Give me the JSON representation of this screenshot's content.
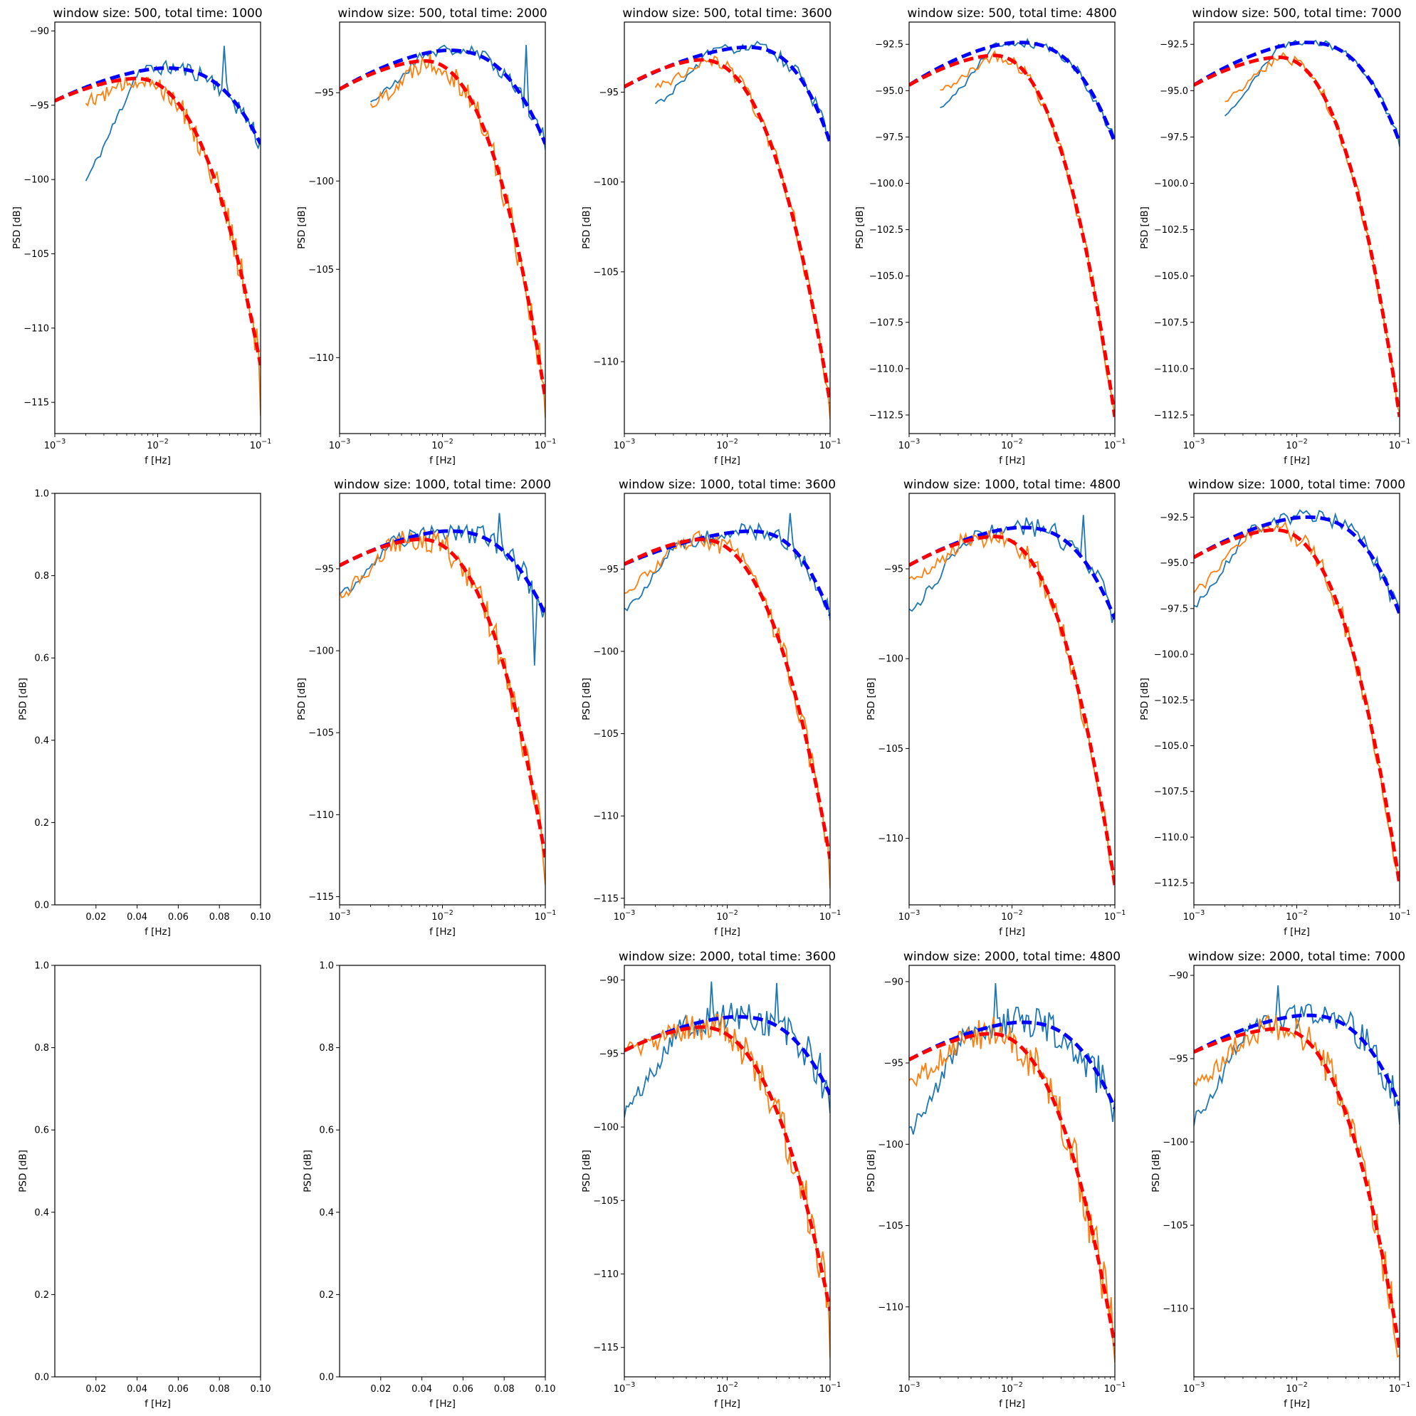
{
  "colors": {
    "blue_fit": "#0000ff",
    "red_fit": "#ff0000",
    "blue_data": "#1f77b4",
    "orange_data": "#ff7f0e",
    "frame": "#000000"
  },
  "figure": {
    "rows": 3,
    "cols": 5,
    "grid": false
  },
  "chart_data": [
    {
      "row": 0,
      "col": 0,
      "type": "line",
      "title": "window size: 500, total time: 1000",
      "xlabel": "f [Hz]",
      "ylabel": "PSD [dB]",
      "xscale": "log",
      "xlim": [
        0.001,
        0.1
      ],
      "ylim": [
        -117.1,
        -89.4
      ],
      "xticks": [
        0.001,
        0.01,
        0.1
      ],
      "xticklabels": [
        "10",
        "10",
        "10"
      ],
      "xtick_exp": [
        "−3",
        "−2",
        "−1"
      ],
      "yticks": [
        -115,
        -110,
        -105,
        -100,
        -95,
        -90
      ],
      "yticklabels": [
        "−115",
        "−110",
        "−105",
        "−100",
        "−95",
        "−90"
      ],
      "blue_fit": {
        "peak_f": 0.0115,
        "peak": -92.5,
        "left": -94.7,
        "right": -97.6,
        "bump": 1.3
      },
      "red_fit": {
        "peak_f": 0.006,
        "peak": -93.2,
        "left": -94.7,
        "right": -112.5,
        "p": 2.3,
        "q": 3.0
      },
      "blue_data": {
        "start_f": 0.002,
        "start": -100.1,
        "noise": 0.8,
        "seed": 11,
        "spikes": [
          [
            0.045,
            -91.0
          ]
        ]
      },
      "orange_data": {
        "start_f": 0.002,
        "start": -94.7,
        "noise": 1.3,
        "seed": 12,
        "end": -115.9
      }
    },
    {
      "row": 0,
      "col": 1,
      "type": "line",
      "title": "window size: 500, total time: 2000",
      "xlabel": "f [Hz]",
      "ylabel": "PSD [dB]",
      "xscale": "log",
      "xlim": [
        0.001,
        0.1
      ],
      "ylim": [
        -114.3,
        -91.0
      ],
      "xticks": [
        0.001,
        0.01,
        0.1
      ],
      "xticklabels": [
        "10",
        "10",
        "10"
      ],
      "xtick_exp": [
        "−3",
        "−2",
        "−1"
      ],
      "yticks": [
        -110,
        -105,
        -100,
        -95
      ],
      "yticklabels": [
        "−110",
        "−105",
        "−100",
        "−95"
      ],
      "blue_fit": {
        "peak_f": 0.011,
        "peak": -92.6,
        "left": -94.8,
        "right": -97.9,
        "bump": 1.3
      },
      "red_fit": {
        "peak_f": 0.0065,
        "peak": -93.2,
        "left": -94.8,
        "right": -112.3,
        "p": 2.3,
        "q": 3.0
      },
      "blue_data": {
        "start_f": 0.002,
        "start": -95.5,
        "noise": 0.6,
        "seed": 21,
        "spikes": [
          [
            0.065,
            -92.3
          ]
        ]
      },
      "orange_data": {
        "start_f": 0.002,
        "start": -95.7,
        "noise": 1.2,
        "seed": 22,
        "end": -113.4
      }
    },
    {
      "row": 0,
      "col": 2,
      "type": "line",
      "title": "window size: 500, total time: 3600",
      "xlabel": "f [Hz]",
      "ylabel": "PSD [dB]",
      "xscale": "log",
      "xlim": [
        0.001,
        0.1
      ],
      "ylim": [
        -114.0,
        -91.1
      ],
      "xticks": [
        0.001,
        0.01,
        0.1
      ],
      "xticklabels": [
        "10",
        "10",
        "10"
      ],
      "xtick_exp": [
        "−3",
        "−2",
        "−1"
      ],
      "yticks": [
        -110,
        -105,
        -100,
        -95
      ],
      "yticklabels": [
        "−110",
        "−105",
        "−100",
        "−95"
      ],
      "blue_fit": {
        "peak_f": 0.015,
        "peak": -92.5,
        "left": -94.7,
        "right": -97.8,
        "bump": 1.2
      },
      "red_fit": {
        "peak_f": 0.0055,
        "peak": -93.2,
        "left": -94.7,
        "right": -112.3,
        "p": 2.3,
        "q": 3.0
      },
      "blue_data": {
        "start_f": 0.002,
        "start": -95.7,
        "noise": 0.5,
        "seed": 31,
        "spikes": []
      },
      "orange_data": {
        "start_f": 0.002,
        "start": -94.7,
        "noise": 0.7,
        "seed": 32,
        "end": -113.2
      }
    },
    {
      "row": 0,
      "col": 3,
      "type": "line",
      "title": "window size: 500, total time: 4800",
      "xlabel": "f [Hz]",
      "ylabel": "PSD [dB]",
      "xscale": "log",
      "xlim": [
        0.001,
        0.1
      ],
      "ylim": [
        -113.5,
        -91.3
      ],
      "xticks": [
        0.001,
        0.01,
        0.1
      ],
      "xticklabels": [
        "10",
        "10",
        "10"
      ],
      "xtick_exp": [
        "−3",
        "−2",
        "−1"
      ],
      "yticks": [
        -112.5,
        -110.0,
        -107.5,
        -105.0,
        -102.5,
        -100.0,
        -97.5,
        -95.0,
        -92.5
      ],
      "yticklabels": [
        "−112.5",
        "−110.0",
        "−107.5",
        "−105.0",
        "−102.5",
        "−100.0",
        "−97.5",
        "−95.0",
        "−92.5"
      ],
      "blue_fit": {
        "peak_f": 0.011,
        "peak": -92.4,
        "left": -94.7,
        "right": -97.8,
        "bump": 1.3
      },
      "red_fit": {
        "peak_f": 0.0065,
        "peak": -93.1,
        "left": -94.7,
        "right": -112.6,
        "p": 2.3,
        "q": 3.0
      },
      "blue_data": {
        "start_f": 0.002,
        "start": -96.0,
        "noise": 0.4,
        "seed": 41,
        "spikes": []
      },
      "orange_data": {
        "start_f": 0.002,
        "start": -95.0,
        "noise": 0.6,
        "seed": 42,
        "end": -112.6
      }
    },
    {
      "row": 0,
      "col": 4,
      "type": "line",
      "title": "window size: 500, total time: 7000",
      "xlabel": "f [Hz]",
      "ylabel": "PSD [dB]",
      "xscale": "log",
      "xlim": [
        0.001,
        0.1
      ],
      "ylim": [
        -113.5,
        -91.3
      ],
      "xticks": [
        0.001,
        0.01,
        0.1
      ],
      "xticklabels": [
        "10",
        "10",
        "10"
      ],
      "xtick_exp": [
        "−3",
        "−2",
        "−1"
      ],
      "yticks": [
        -112.5,
        -110.0,
        -107.5,
        -105.0,
        -102.5,
        -100.0,
        -97.5,
        -95.0,
        -92.5
      ],
      "yticklabels": [
        "−112.5",
        "−110.0",
        "−107.5",
        "−105.0",
        "−102.5",
        "−100.0",
        "−97.5",
        "−95.0",
        "−92.5"
      ],
      "blue_fit": {
        "peak_f": 0.012,
        "peak": -92.4,
        "left": -94.7,
        "right": -97.8,
        "bump": 1.3
      },
      "red_fit": {
        "peak_f": 0.0065,
        "peak": -93.2,
        "left": -94.7,
        "right": -112.6,
        "p": 2.3,
        "q": 3.0
      },
      "blue_data": {
        "start_f": 0.002,
        "start": -96.3,
        "noise": 0.3,
        "seed": 51,
        "spikes": []
      },
      "orange_data": {
        "start_f": 0.002,
        "start": -95.5,
        "noise": 0.5,
        "seed": 52,
        "end": -112.4
      }
    },
    {
      "row": 1,
      "col": 0,
      "type": "empty",
      "title": "",
      "xlabel": "f [Hz]",
      "ylabel": "PSD [dB]",
      "xscale": "linear",
      "xlim": [
        0.0,
        0.1
      ],
      "ylim": [
        0.0,
        1.0
      ],
      "xticks": [
        0.02,
        0.04,
        0.06,
        0.08,
        0.1
      ],
      "xticklabels": [
        "0.02",
        "0.04",
        "0.06",
        "0.08",
        "0.10"
      ],
      "yticks": [
        0.0,
        0.2,
        0.4,
        0.6,
        0.8,
        1.0
      ],
      "yticklabels": [
        "0.0",
        "0.2",
        "0.4",
        "0.6",
        "0.8",
        "1.0"
      ]
    },
    {
      "row": 1,
      "col": 1,
      "type": "line",
      "title": "window size: 1000, total time: 2000",
      "xlabel": "f [Hz]",
      "ylabel": "PSD [dB]",
      "xscale": "log",
      "xlim": [
        0.001,
        0.1
      ],
      "ylim": [
        -115.5,
        -90.4
      ],
      "xticks": [
        0.001,
        0.01,
        0.1
      ],
      "xticklabels": [
        "10",
        "10",
        "10"
      ],
      "xtick_exp": [
        "−3",
        "−2",
        "−1"
      ],
      "yticks": [
        -115,
        -110,
        -105,
        -100,
        -95
      ],
      "yticklabels": [
        "−115",
        "−110",
        "−105",
        "−100",
        "−95"
      ],
      "blue_fit": {
        "peak_f": 0.011,
        "peak": -92.7,
        "left": -94.8,
        "right": -97.8,
        "bump": 1.3
      },
      "red_fit": {
        "peak_f": 0.006,
        "peak": -93.2,
        "left": -94.8,
        "right": -112.6,
        "p": 2.3,
        "q": 3.0
      },
      "blue_data": {
        "start_f": 0.001,
        "start": -96.6,
        "noise": 0.9,
        "seed": 61,
        "spikes": [
          [
            0.035,
            -91.6
          ],
          [
            0.08,
            -100.9
          ]
        ]
      },
      "orange_data": {
        "start_f": 0.001,
        "start": -96.6,
        "noise": 1.3,
        "seed": 62,
        "end": -114.3
      }
    },
    {
      "row": 1,
      "col": 2,
      "type": "line",
      "title": "window size: 1000, total time: 3600",
      "xlabel": "f [Hz]",
      "ylabel": "PSD [dB]",
      "xscale": "log",
      "xlim": [
        0.001,
        0.1
      ],
      "ylim": [
        -115.4,
        -90.4
      ],
      "xticks": [
        0.001,
        0.01,
        0.1
      ],
      "xticklabels": [
        "10",
        "10",
        "10"
      ],
      "xtick_exp": [
        "−3",
        "−2",
        "−1"
      ],
      "yticks": [
        -115,
        -110,
        -105,
        -100,
        -95
      ],
      "yticklabels": [
        "−115",
        "−110",
        "−105",
        "−100",
        "−95"
      ],
      "blue_fit": {
        "peak_f": 0.016,
        "peak": -92.7,
        "left": -94.7,
        "right": -97.8,
        "bump": 1.2
      },
      "red_fit": {
        "peak_f": 0.0055,
        "peak": -93.2,
        "left": -94.7,
        "right": -112.6,
        "p": 2.3,
        "q": 3.0
      },
      "blue_data": {
        "start_f": 0.001,
        "start": -97.5,
        "noise": 0.8,
        "seed": 71,
        "spikes": [
          [
            0.04,
            -91.6
          ]
        ]
      },
      "orange_data": {
        "start_f": 0.001,
        "start": -96.3,
        "noise": 1.0,
        "seed": 72,
        "end": -114.4
      }
    },
    {
      "row": 1,
      "col": 3,
      "type": "line",
      "title": "window size: 1000, total time: 4800",
      "xlabel": "f [Hz]",
      "ylabel": "PSD [dB]",
      "xscale": "log",
      "xlim": [
        0.001,
        0.1
      ],
      "ylim": [
        -113.7,
        -90.8
      ],
      "xticks": [
        0.001,
        0.01,
        0.1
      ],
      "xticklabels": [
        "10",
        "10",
        "10"
      ],
      "xtick_exp": [
        "−3",
        "−2",
        "−1"
      ],
      "yticks": [
        -110,
        -105,
        -100,
        -95
      ],
      "yticklabels": [
        "−110",
        "−105",
        "−100",
        "−95"
      ],
      "blue_fit": {
        "peak_f": 0.012,
        "peak": -92.7,
        "left": -94.8,
        "right": -97.8,
        "bump": 1.3
      },
      "red_fit": {
        "peak_f": 0.0065,
        "peak": -93.2,
        "left": -94.8,
        "right": -112.6,
        "p": 2.3,
        "q": 3.0
      },
      "blue_data": {
        "start_f": 0.001,
        "start": -97.4,
        "noise": 0.8,
        "seed": 81,
        "spikes": [
          [
            0.05,
            -92.0
          ]
        ]
      },
      "orange_data": {
        "start_f": 0.001,
        "start": -95.7,
        "noise": 1.0,
        "seed": 82,
        "end": -112.5
      }
    },
    {
      "row": 1,
      "col": 4,
      "type": "line",
      "title": "window size: 1000, total time: 7000",
      "xlabel": "f [Hz]",
      "ylabel": "PSD [dB]",
      "xscale": "log",
      "xlim": [
        0.001,
        0.1
      ],
      "ylim": [
        -113.7,
        -91.2
      ],
      "xticks": [
        0.001,
        0.01,
        0.1
      ],
      "xticklabels": [
        "10",
        "10",
        "10"
      ],
      "xtick_exp": [
        "−3",
        "−2",
        "−1"
      ],
      "yticks": [
        -112.5,
        -110.0,
        -107.5,
        -105.0,
        -102.5,
        -100.0,
        -97.5,
        -95.0,
        -92.5
      ],
      "yticklabels": [
        "−112.5",
        "−110.0",
        "−107.5",
        "−105.0",
        "−102.5",
        "−100.0",
        "−97.5",
        "−95.0",
        "−92.5"
      ],
      "blue_fit": {
        "peak_f": 0.012,
        "peak": -92.5,
        "left": -94.7,
        "right": -97.8,
        "bump": 1.3
      },
      "red_fit": {
        "peak_f": 0.006,
        "peak": -93.2,
        "left": -94.7,
        "right": -112.6,
        "p": 2.3,
        "q": 3.0
      },
      "blue_data": {
        "start_f": 0.001,
        "start": -97.4,
        "noise": 0.6,
        "seed": 91,
        "spikes": []
      },
      "orange_data": {
        "start_f": 0.001,
        "start": -96.6,
        "noise": 0.8,
        "seed": 92,
        "end": -112.3
      }
    },
    {
      "row": 2,
      "col": 0,
      "type": "empty",
      "title": "",
      "xlabel": "f [Hz]",
      "ylabel": "PSD [dB]",
      "xscale": "linear",
      "xlim": [
        0.0,
        0.1
      ],
      "ylim": [
        0.0,
        1.0
      ],
      "xticks": [
        0.02,
        0.04,
        0.06,
        0.08,
        0.1
      ],
      "xticklabels": [
        "0.02",
        "0.04",
        "0.06",
        "0.08",
        "0.10"
      ],
      "yticks": [
        0.0,
        0.2,
        0.4,
        0.6,
        0.8,
        1.0
      ],
      "yticklabels": [
        "0.0",
        "0.2",
        "0.4",
        "0.6",
        "0.8",
        "1.0"
      ]
    },
    {
      "row": 2,
      "col": 1,
      "type": "empty",
      "title": "",
      "xlabel": "f [Hz]",
      "ylabel": "PSD [dB]",
      "xscale": "linear",
      "xlim": [
        0.0,
        0.1
      ],
      "ylim": [
        0.0,
        1.0
      ],
      "xticks": [
        0.02,
        0.04,
        0.06,
        0.08,
        0.1
      ],
      "xticklabels": [
        "0.02",
        "0.04",
        "0.06",
        "0.08",
        "0.10"
      ],
      "yticks": [
        0.0,
        0.2,
        0.4,
        0.6,
        0.8,
        1.0
      ],
      "yticklabels": [
        "0.0",
        "0.2",
        "0.4",
        "0.6",
        "0.8",
        "1.0"
      ]
    },
    {
      "row": 2,
      "col": 2,
      "type": "line",
      "title": "window size: 2000, total time: 3600",
      "xlabel": "f [Hz]",
      "ylabel": "PSD [dB]",
      "xscale": "log",
      "xlim": [
        0.001,
        0.1
      ],
      "ylim": [
        -117.0,
        -89.0
      ],
      "xticks": [
        0.001,
        0.01,
        0.1
      ],
      "xticklabels": [
        "10",
        "10",
        "10"
      ],
      "xtick_exp": [
        "−3",
        "−2",
        "−1"
      ],
      "yticks": [
        -115,
        -110,
        -105,
        -100,
        -95,
        -90
      ],
      "yticklabels": [
        "−115",
        "−110",
        "−105",
        "−100",
        "−95",
        "−90"
      ],
      "blue_fit": {
        "peak_f": 0.012,
        "peak": -92.5,
        "left": -94.8,
        "right": -97.8,
        "bump": 1.3
      },
      "red_fit": {
        "peak_f": 0.0055,
        "peak": -93.2,
        "left": -94.8,
        "right": -112.5,
        "p": 2.3,
        "q": 3.0
      },
      "blue_data": {
        "start_f": 0.001,
        "start": -99.0,
        "noise": 1.6,
        "seed": 101,
        "spikes": [
          [
            0.007,
            -90.1
          ],
          [
            0.03,
            -90.2
          ]
        ]
      },
      "orange_data": {
        "start_f": 0.001,
        "start": -94.8,
        "noise": 1.8,
        "seed": 102,
        "end": -115.7
      }
    },
    {
      "row": 2,
      "col": 3,
      "type": "line",
      "title": "window size: 2000, total time: 4800",
      "xlabel": "f [Hz]",
      "ylabel": "PSD [dB]",
      "xscale": "log",
      "xlim": [
        0.001,
        0.1
      ],
      "ylim": [
        -114.3,
        -89.0
      ],
      "xticks": [
        0.001,
        0.01,
        0.1
      ],
      "xticklabels": [
        "10",
        "10",
        "10"
      ],
      "xtick_exp": [
        "−3",
        "−2",
        "−1"
      ],
      "yticks": [
        -110,
        -105,
        -100,
        -95,
        -90
      ],
      "yticklabels": [
        "−110",
        "−105",
        "−100",
        "−95",
        "−90"
      ],
      "blue_fit": {
        "peak_f": 0.012,
        "peak": -92.5,
        "left": -94.8,
        "right": -97.8,
        "bump": 1.3
      },
      "red_fit": {
        "peak_f": 0.006,
        "peak": -93.2,
        "left": -94.8,
        "right": -112.4,
        "p": 2.3,
        "q": 3.0
      },
      "blue_data": {
        "start_f": 0.001,
        "start": -99.4,
        "noise": 1.5,
        "seed": 111,
        "spikes": [
          [
            0.007,
            -90.1
          ]
        ]
      },
      "orange_data": {
        "start_f": 0.001,
        "start": -96.2,
        "noise": 1.8,
        "seed": 112,
        "end": -113.4
      }
    },
    {
      "row": 2,
      "col": 4,
      "type": "line",
      "title": "window size: 2000, total time: 7000",
      "xlabel": "f [Hz]",
      "ylabel": "PSD [dB]",
      "xscale": "log",
      "xlim": [
        0.001,
        0.1
      ],
      "ylim": [
        -114.1,
        -89.4
      ],
      "xticks": [
        0.001,
        0.01,
        0.1
      ],
      "xticklabels": [
        "10",
        "10",
        "10"
      ],
      "xtick_exp": [
        "−3",
        "−2",
        "−1"
      ],
      "yticks": [
        -110,
        -105,
        -100,
        -95,
        -90
      ],
      "yticklabels": [
        "−110",
        "−105",
        "−100",
        "−95",
        "−90"
      ],
      "blue_fit": {
        "peak_f": 0.012,
        "peak": -92.4,
        "left": -94.6,
        "right": -97.8,
        "bump": 1.3
      },
      "red_fit": {
        "peak_f": 0.0065,
        "peak": -93.2,
        "left": -94.6,
        "right": -112.5,
        "p": 2.3,
        "q": 3.0
      },
      "blue_data": {
        "start_f": 0.001,
        "start": -98.7,
        "noise": 1.2,
        "seed": 121,
        "spikes": [
          [
            0.0065,
            -90.6
          ]
        ]
      },
      "orange_data": {
        "start_f": 0.001,
        "start": -96.6,
        "noise": 1.5,
        "seed": 122,
        "end": -112.8
      }
    }
  ]
}
